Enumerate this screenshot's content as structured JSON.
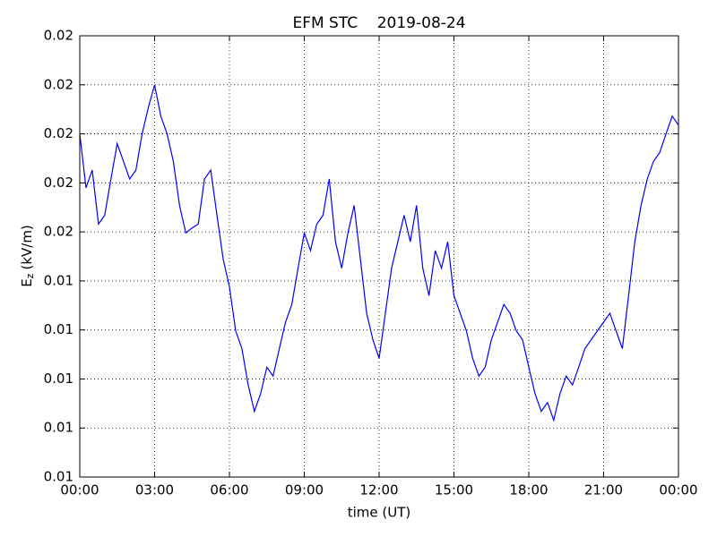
{
  "chart_data": {
    "type": "line",
    "title": "EFM STC    2019-08-24",
    "xlabel": "time (UT)",
    "ylabel": "E",
    "ylabel_sub": "z",
    "ylabel_unit": "(kV/m)",
    "grid": true,
    "xlim": [
      0,
      24
    ],
    "xticks": [
      {
        "value": 0,
        "label": "00:00"
      },
      {
        "value": 3,
        "label": "03:00"
      },
      {
        "value": 6,
        "label": "06:00"
      },
      {
        "value": 9,
        "label": "09:00"
      },
      {
        "value": 12,
        "label": "12:00"
      },
      {
        "value": 15,
        "label": "15:00"
      },
      {
        "value": 18,
        "label": "18:00"
      },
      {
        "value": 21,
        "label": "21:00"
      },
      {
        "value": 24,
        "label": "00:00"
      }
    ],
    "ylim": [
      0.0125,
      0.017
    ],
    "yticks": [
      {
        "value": 0.0125,
        "label": "0.01"
      },
      {
        "value": 0.013,
        "label": "0.01"
      },
      {
        "value": 0.0135,
        "label": "0.01"
      },
      {
        "value": 0.014,
        "label": "0.01"
      },
      {
        "value": 0.0145,
        "label": "0.01"
      },
      {
        "value": 0.015,
        "label": "0.02"
      },
      {
        "value": 0.0155,
        "label": "0.02"
      },
      {
        "value": 0.016,
        "label": "0.02"
      },
      {
        "value": 0.0165,
        "label": "0.02"
      },
      {
        "value": 0.017,
        "label": "0.02"
      }
    ],
    "x": [
      0,
      0.25,
      0.5,
      0.75,
      1,
      1.25,
      1.5,
      1.75,
      2,
      2.25,
      2.5,
      2.75,
      3,
      3.25,
      3.5,
      3.75,
      4,
      4.25,
      4.5,
      4.75,
      5,
      5.25,
      5.5,
      5.75,
      6,
      6.25,
      6.5,
      6.75,
      7,
      7.25,
      7.5,
      7.75,
      8,
      8.25,
      8.5,
      8.75,
      9,
      9.25,
      9.5,
      9.75,
      10,
      10.25,
      10.5,
      10.75,
      11,
      11.25,
      11.5,
      11.75,
      12,
      12.25,
      12.5,
      12.75,
      13,
      13.25,
      13.5,
      13.75,
      14,
      14.25,
      14.5,
      14.75,
      15,
      15.25,
      15.5,
      15.75,
      16,
      16.25,
      16.5,
      16.75,
      17,
      17.25,
      17.5,
      17.75,
      18,
      18.25,
      18.5,
      18.75,
      19,
      19.25,
      19.5,
      19.75,
      20,
      20.25,
      20.5,
      20.75,
      21,
      21.25,
      21.5,
      21.75,
      22,
      22.25,
      22.5,
      22.75,
      23,
      23.25,
      23.5,
      23.75,
      24
    ],
    "series": [
      {
        "color": "#0000ff",
        "values": [
          0.016,
          0.01545,
          0.01563,
          0.01508,
          0.01517,
          0.01554,
          0.0159,
          0.01572,
          0.01554,
          0.01563,
          0.016,
          0.01627,
          0.0165,
          0.01618,
          0.016,
          0.01572,
          0.01527,
          0.01499,
          0.01504,
          0.01508,
          0.01554,
          0.01563,
          0.01517,
          0.01472,
          0.01444,
          0.01399,
          0.01381,
          0.01344,
          0.01317,
          0.01335,
          0.01362,
          0.01353,
          0.01381,
          0.01408,
          0.01426,
          0.01463,
          0.01499,
          0.01481,
          0.01508,
          0.01517,
          0.01554,
          0.0149,
          0.01463,
          0.01499,
          0.01527,
          0.01472,
          0.01417,
          0.0139,
          0.01371,
          0.01417,
          0.01463,
          0.0149,
          0.01517,
          0.0149,
          0.01527,
          0.01463,
          0.01435,
          0.01481,
          0.01463,
          0.0149,
          0.01435,
          0.01417,
          0.01399,
          0.01371,
          0.01353,
          0.01362,
          0.0139,
          0.01408,
          0.01426,
          0.01417,
          0.01399,
          0.0139,
          0.01362,
          0.01335,
          0.01317,
          0.01326,
          0.01308,
          0.01335,
          0.01353,
          0.01344,
          0.01362,
          0.01381,
          0.0139,
          0.01399,
          0.01408,
          0.01417,
          0.01399,
          0.01381,
          0.01435,
          0.0149,
          0.01527,
          0.01554,
          0.01572,
          0.01581,
          0.016,
          0.01618,
          0.01609
        ]
      }
    ]
  }
}
